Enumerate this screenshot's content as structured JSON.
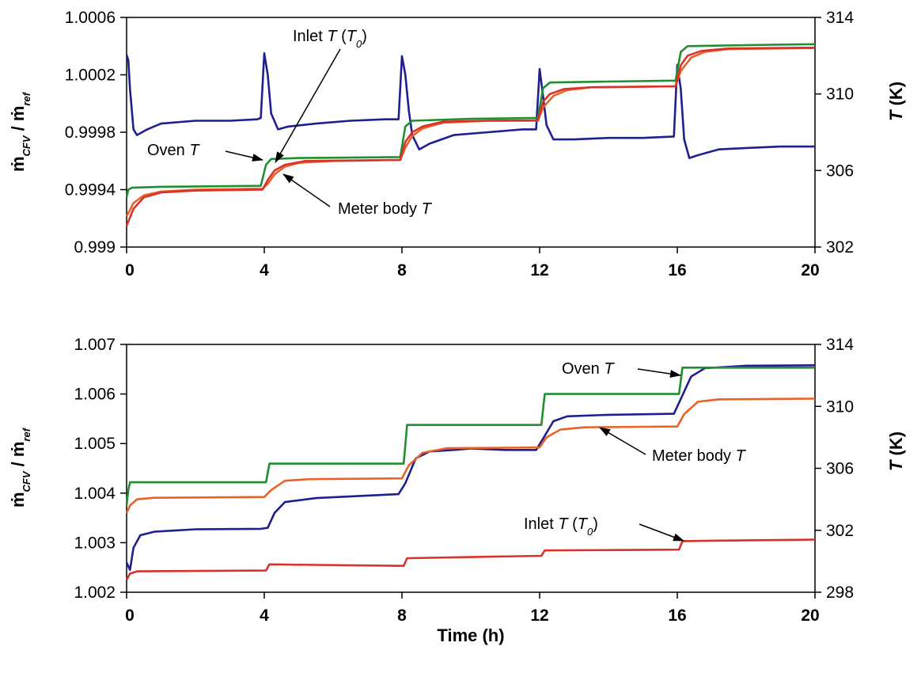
{
  "chart_data": [
    {
      "type": "line",
      "xlabel": "",
      "y_left": {
        "ylim": [
          0.999,
          1.0006
        ],
        "ticks": [
          0.999,
          0.9994,
          0.9998,
          1.0002,
          1.0006
        ],
        "tick_labels": [
          "0.999",
          "0.9994",
          "0.9998",
          "1.0002",
          "1.0006"
        ],
        "label_base": "ṁ",
        "label_sub": "CFV",
        "label_sep": " / ",
        "label_base2": "ṁ",
        "label_sub2": "ref"
      },
      "y_right": {
        "ylim": [
          302,
          314
        ],
        "ticks": [
          302,
          306,
          310,
          314
        ],
        "tick_labels": [
          "302",
          "306",
          "310",
          "314"
        ],
        "label_var": "T",
        "label_unit": " (K)"
      },
      "x": {
        "xlim": [
          0,
          20
        ],
        "ticks": [
          0,
          4,
          8,
          12,
          16,
          20
        ],
        "tick_labels": [
          "0",
          "4",
          "8",
          "12",
          "16",
          "20"
        ]
      },
      "grid": false,
      "legend": "none",
      "series": [
        {
          "axis": "left",
          "color": "#1f1f8f",
          "points": [
            [
              0,
              1.00034
            ],
            [
              0.05,
              1.0003
            ],
            [
              0.1,
              1.0001
            ],
            [
              0.2,
              0.99982
            ],
            [
              0.3,
              0.99978
            ],
            [
              0.6,
              0.99982
            ],
            [
              1.0,
              0.99986
            ],
            [
              2.0,
              0.99988
            ],
            [
              3.0,
              0.99988
            ],
            [
              3.8,
              0.99989
            ],
            [
              3.9,
              0.9999
            ],
            [
              4.0,
              1.00035
            ],
            [
              4.1,
              1.0002
            ],
            [
              4.2,
              0.99993
            ],
            [
              4.4,
              0.99982
            ],
            [
              4.7,
              0.99984
            ],
            [
              5.5,
              0.99986
            ],
            [
              6.5,
              0.99988
            ],
            [
              7.5,
              0.99989
            ],
            [
              7.9,
              0.99989
            ],
            [
              8.0,
              1.00033
            ],
            [
              8.1,
              1.0002
            ],
            [
              8.2,
              0.99995
            ],
            [
              8.3,
              0.99978
            ],
            [
              8.5,
              0.99968
            ],
            [
              8.8,
              0.99972
            ],
            [
              9.5,
              0.99978
            ],
            [
              10.5,
              0.9998
            ],
            [
              11.5,
              0.99982
            ],
            [
              11.9,
              0.99982
            ],
            [
              12.0,
              1.00024
            ],
            [
              12.1,
              1.00005
            ],
            [
              12.2,
              0.99985
            ],
            [
              12.4,
              0.99975
            ],
            [
              13.0,
              0.99975
            ],
            [
              14.0,
              0.99976
            ],
            [
              15.0,
              0.99976
            ],
            [
              15.9,
              0.99977
            ],
            [
              16.0,
              1.00027
            ],
            [
              16.1,
              1.0001
            ],
            [
              16.2,
              0.99975
            ],
            [
              16.35,
              0.99962
            ],
            [
              16.6,
              0.99964
            ],
            [
              17.2,
              0.99968
            ],
            [
              18.0,
              0.99969
            ],
            [
              19.0,
              0.9997
            ],
            [
              20.0,
              0.9997
            ]
          ]
        },
        {
          "axis": "right",
          "color": "#1f8f2f",
          "points": [
            [
              0,
              304.6
            ],
            [
              0.05,
              305.0
            ],
            [
              0.15,
              305.1
            ],
            [
              1.0,
              305.15
            ],
            [
              3.9,
              305.2
            ],
            [
              4.05,
              306.3
            ],
            [
              4.2,
              306.6
            ],
            [
              5.0,
              306.65
            ],
            [
              7.95,
              306.7
            ],
            [
              8.1,
              308.3
            ],
            [
              8.3,
              308.6
            ],
            [
              10.0,
              308.7
            ],
            [
              11.95,
              308.75
            ],
            [
              12.1,
              310.3
            ],
            [
              12.3,
              310.6
            ],
            [
              14.0,
              310.65
            ],
            [
              15.95,
              310.7
            ],
            [
              16.1,
              312.2
            ],
            [
              16.3,
              312.5
            ],
            [
              18.0,
              312.55
            ],
            [
              20.0,
              312.6
            ]
          ]
        },
        {
          "axis": "right",
          "color": "#e8622a",
          "points": [
            [
              0,
              303.6
            ],
            [
              0.2,
              304.3
            ],
            [
              0.5,
              304.7
            ],
            [
              1.0,
              304.9
            ],
            [
              2.0,
              305.0
            ],
            [
              3.95,
              305.05
            ],
            [
              4.1,
              305.3
            ],
            [
              4.3,
              305.8
            ],
            [
              4.6,
              306.2
            ],
            [
              5.0,
              306.4
            ],
            [
              6.0,
              306.5
            ],
            [
              7.95,
              306.55
            ],
            [
              8.1,
              307.2
            ],
            [
              8.3,
              307.8
            ],
            [
              8.6,
              308.2
            ],
            [
              9.2,
              308.5
            ],
            [
              10.5,
              308.6
            ],
            [
              11.95,
              308.6
            ],
            [
              12.1,
              309.3
            ],
            [
              12.4,
              309.9
            ],
            [
              12.8,
              310.2
            ],
            [
              13.5,
              310.35
            ],
            [
              15.95,
              310.4
            ],
            [
              16.1,
              311.2
            ],
            [
              16.4,
              311.9
            ],
            [
              16.8,
              312.2
            ],
            [
              17.5,
              312.35
            ],
            [
              20.0,
              312.4
            ]
          ]
        },
        {
          "axis": "right",
          "color": "#d8322a",
          "points": [
            [
              0,
              303.1
            ],
            [
              0.2,
              304.0
            ],
            [
              0.5,
              304.6
            ],
            [
              1.0,
              304.85
            ],
            [
              2.0,
              304.95
            ],
            [
              3.95,
              305.0
            ],
            [
              4.1,
              305.5
            ],
            [
              4.3,
              306.0
            ],
            [
              4.6,
              306.3
            ],
            [
              5.2,
              306.5
            ],
            [
              7.95,
              306.55
            ],
            [
              8.1,
              307.5
            ],
            [
              8.3,
              308.0
            ],
            [
              8.6,
              308.3
            ],
            [
              9.2,
              308.55
            ],
            [
              10.5,
              308.6
            ],
            [
              11.95,
              308.62
            ],
            [
              12.1,
              309.6
            ],
            [
              12.3,
              310.0
            ],
            [
              12.7,
              310.25
            ],
            [
              13.5,
              310.35
            ],
            [
              15.95,
              310.4
            ],
            [
              16.1,
              311.5
            ],
            [
              16.3,
              312.0
            ],
            [
              16.7,
              312.25
            ],
            [
              17.5,
              312.38
            ],
            [
              20.0,
              312.42
            ]
          ]
        }
      ],
      "annotations": [
        {
          "text": "Inlet ",
          "var": "T",
          "extra": " (",
          "var2": "T",
          "sub": "0",
          "close": ")"
        },
        {
          "text": "Oven ",
          "var": "T"
        },
        {
          "text": "Meter body ",
          "var": "T"
        }
      ]
    },
    {
      "type": "line",
      "xlabel": "Time (h)",
      "y_left": {
        "ylim": [
          1.002,
          1.007
        ],
        "ticks": [
          1.002,
          1.003,
          1.004,
          1.005,
          1.006,
          1.007
        ],
        "tick_labels": [
          "1.002",
          "1.003",
          "1.004",
          "1.005",
          "1.006",
          "1.007"
        ],
        "label_base": "ṁ",
        "label_sub": "CFV",
        "label_sep": " / ",
        "label_base2": "ṁ",
        "label_sub2": "ref"
      },
      "y_right": {
        "ylim": [
          298,
          314
        ],
        "ticks": [
          298,
          302,
          306,
          310,
          314
        ],
        "tick_labels": [
          "298",
          "302",
          "306",
          "310",
          "314"
        ],
        "label_var": "T",
        "label_unit": " (K)"
      },
      "x": {
        "xlim": [
          0,
          20
        ],
        "ticks": [
          0,
          4,
          8,
          12,
          16,
          20
        ],
        "tick_labels": [
          "0",
          "4",
          "8",
          "12",
          "16",
          "20"
        ]
      },
      "grid": false,
      "legend": "none",
      "series": [
        {
          "axis": "left",
          "color": "#1f1f8f",
          "points": [
            [
              0,
              1.0026
            ],
            [
              0.1,
              1.00245
            ],
            [
              0.2,
              1.0029
            ],
            [
              0.4,
              1.00315
            ],
            [
              0.8,
              1.00322
            ],
            [
              2.0,
              1.00327
            ],
            [
              3.9,
              1.00328
            ],
            [
              4.1,
              1.0033
            ],
            [
              4.3,
              1.0036
            ],
            [
              4.6,
              1.00382
            ],
            [
              5.5,
              1.0039
            ],
            [
              7.0,
              1.00395
            ],
            [
              7.9,
              1.00398
            ],
            [
              8.1,
              1.0042
            ],
            [
              8.4,
              1.0047
            ],
            [
              8.8,
              1.00484
            ],
            [
              9.5,
              1.00487
            ],
            [
              10.0,
              1.0049
            ],
            [
              11.0,
              1.00487
            ],
            [
              11.9,
              1.00487
            ],
            [
              12.1,
              1.0051
            ],
            [
              12.4,
              1.00545
            ],
            [
              12.8,
              1.00555
            ],
            [
              14.0,
              1.00558
            ],
            [
              15.9,
              1.0056
            ],
            [
              16.1,
              1.0059
            ],
            [
              16.4,
              1.00635
            ],
            [
              16.8,
              1.00652
            ],
            [
              18.0,
              1.00657
            ],
            [
              20.0,
              1.00658
            ]
          ]
        },
        {
          "axis": "right",
          "color": "#1f8f2f",
          "points": [
            [
              0,
              303.6
            ],
            [
              0.05,
              304.6
            ],
            [
              0.1,
              305.1
            ],
            [
              4.05,
              305.1
            ],
            [
              4.15,
              306.3
            ],
            [
              8.05,
              306.3
            ],
            [
              8.15,
              308.8
            ],
            [
              12.05,
              308.8
            ],
            [
              12.15,
              310.8
            ],
            [
              16.05,
              310.8
            ],
            [
              16.15,
              312.5
            ],
            [
              20.0,
              312.5
            ]
          ]
        },
        {
          "axis": "right",
          "color": "#e8622a",
          "points": [
            [
              0,
              303.1
            ],
            [
              0.1,
              303.6
            ],
            [
              0.3,
              304.0
            ],
            [
              0.8,
              304.1
            ],
            [
              4.0,
              304.15
            ],
            [
              4.2,
              304.6
            ],
            [
              4.6,
              305.2
            ],
            [
              5.3,
              305.3
            ],
            [
              8.0,
              305.35
            ],
            [
              8.2,
              306.2
            ],
            [
              8.6,
              307.0
            ],
            [
              9.3,
              307.3
            ],
            [
              12.0,
              307.35
            ],
            [
              12.2,
              308.0
            ],
            [
              12.6,
              308.5
            ],
            [
              13.3,
              308.65
            ],
            [
              16.0,
              308.7
            ],
            [
              16.2,
              309.5
            ],
            [
              16.6,
              310.3
            ],
            [
              17.2,
              310.45
            ],
            [
              20.0,
              310.5
            ]
          ]
        },
        {
          "axis": "right",
          "color": "#d8322a",
          "points": [
            [
              0,
              298.8
            ],
            [
              0.1,
              299.2
            ],
            [
              0.3,
              299.35
            ],
            [
              4.05,
              299.4
            ],
            [
              4.15,
              299.8
            ],
            [
              8.05,
              299.7
            ],
            [
              8.15,
              300.2
            ],
            [
              12.05,
              300.35
            ],
            [
              12.15,
              300.7
            ],
            [
              16.05,
              300.75
            ],
            [
              16.15,
              301.3
            ],
            [
              20.0,
              301.4
            ]
          ]
        }
      ],
      "annotations": [
        {
          "text": "Oven ",
          "var": "T"
        },
        {
          "text": "Meter body ",
          "var": "T"
        },
        {
          "text": "Inlet ",
          "var": "T",
          "extra": " (",
          "var2": "T",
          "sub": "0",
          "close": ")"
        }
      ]
    }
  ]
}
